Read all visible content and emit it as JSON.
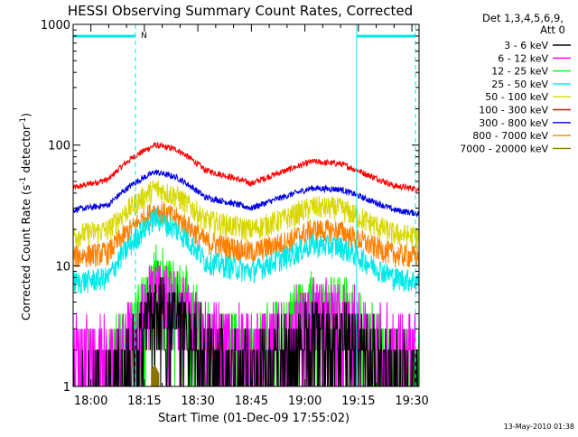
{
  "chart_data": {
    "type": "line",
    "title": "HESSI Observing Summary Count Rates, Corrected",
    "ylabel": "Corrected Count Rate (s",
    "ylabel_sup": "-1",
    "ylabel_mid": " detector",
    "ylabel_sup2": "-1",
    "ylabel_end": ")",
    "xlabel": "Start Time (01-Dec-09 17:55:02)",
    "y_scale": "log",
    "ylim": [
      1,
      1000
    ],
    "xlim": [
      "17:55:02",
      "19:32:00"
    ],
    "x_ticks": [
      "18:00",
      "18:15",
      "18:30",
      "18:45",
      "19:00",
      "19:15",
      "19:30"
    ],
    "y_ticks": [
      "1",
      "10",
      "100",
      "1000"
    ],
    "legend_title_lines": [
      "Det 1,3,4,5,6,9,",
      "Att 0"
    ],
    "legend_placement": "right",
    "footer_date": "13-May-2010 01:38",
    "flag_label": "N",
    "series": [
      {
        "name": "3 - 6 keV",
        "color": "#000000",
        "kind": "noisy",
        "x": [
          "17:55",
          "18:05",
          "18:12",
          "18:18",
          "18:24",
          "18:32",
          "18:45",
          "18:55",
          "19:02",
          "19:10",
          "19:18",
          "19:25",
          "19:32"
        ],
        "values": [
          1.2,
          1.3,
          3,
          6,
          5,
          2.5,
          1.6,
          2.2,
          3.5,
          3.4,
          2.4,
          1.6,
          1.5
        ]
      },
      {
        "name": "6 - 12 keV",
        "color": "#ff00ff",
        "kind": "noisy",
        "x": [
          "17:55",
          "18:05",
          "18:12",
          "18:18",
          "18:24",
          "18:32",
          "18:45",
          "18:55",
          "19:02",
          "19:10",
          "19:18",
          "19:25",
          "19:32"
        ],
        "values": [
          2.6,
          2.6,
          3.5,
          8,
          6.5,
          3.5,
          2.8,
          3.5,
          5.5,
          5.2,
          3.2,
          2.7,
          2.6
        ]
      },
      {
        "name": "12 - 25 keV",
        "color": "#00ff00",
        "kind": "noisy",
        "x": [
          "17:55",
          "18:05",
          "18:12",
          "18:18",
          "18:24",
          "18:32",
          "18:45",
          "18:55",
          "19:02",
          "19:10",
          "19:18",
          "19:25",
          "19:32"
        ],
        "values": [
          1.5,
          1.6,
          4,
          10,
          7.5,
          3.2,
          2.4,
          4,
          6,
          5.8,
          3.5,
          2,
          1.8
        ]
      },
      {
        "name": "25 - 50 keV",
        "color": "#00e8e8",
        "kind": "band",
        "x": [
          "17:55",
          "18:05",
          "18:12",
          "18:18",
          "18:24",
          "18:32",
          "18:45",
          "18:55",
          "19:02",
          "19:10",
          "19:18",
          "19:25",
          "19:32"
        ],
        "values": [
          7.3,
          8,
          16,
          25,
          20,
          11,
          9,
          12,
          15,
          14.5,
          10.5,
          8,
          7.5
        ]
      },
      {
        "name": "50 - 100 keV",
        "color": "#d8d800",
        "kind": "band",
        "x": [
          "17:55",
          "18:05",
          "18:12",
          "18:18",
          "18:24",
          "18:32",
          "18:45",
          "18:55",
          "19:02",
          "19:10",
          "19:18",
          "19:25",
          "19:32"
        ],
        "values": [
          18,
          20,
          32,
          44,
          38,
          24,
          20,
          25,
          31,
          30,
          23,
          18.5,
          17.5
        ]
      },
      {
        "name": "100 - 300 keV",
        "color": "#ff0000",
        "kind": "line",
        "x": [
          "17:55",
          "18:05",
          "18:12",
          "18:18",
          "18:24",
          "18:32",
          "18:45",
          "18:55",
          "19:02",
          "19:10",
          "19:18",
          "19:25",
          "19:32"
        ],
        "values": [
          44,
          52,
          80,
          100,
          92,
          62,
          48,
          62,
          73,
          70,
          56,
          46,
          43
        ]
      },
      {
        "name": "300 - 800 keV",
        "color": "#0000e0",
        "kind": "line",
        "x": [
          "17:55",
          "18:05",
          "18:12",
          "18:18",
          "18:24",
          "18:32",
          "18:45",
          "18:55",
          "19:02",
          "19:10",
          "19:18",
          "19:25",
          "19:32"
        ],
        "values": [
          29,
          32,
          48,
          60,
          54,
          37,
          30,
          38,
          44,
          43,
          35,
          29,
          27
        ]
      },
      {
        "name": "800 - 7000 keV",
        "color": "#ff7f00",
        "kind": "band",
        "x": [
          "17:55",
          "18:05",
          "18:12",
          "18:18",
          "18:24",
          "18:32",
          "18:45",
          "18:55",
          "19:02",
          "19:10",
          "19:18",
          "19:25",
          "19:32"
        ],
        "values": [
          12,
          13,
          21,
          29,
          25,
          16,
          13,
          16,
          20,
          19.5,
          15,
          12.5,
          12
        ]
      },
      {
        "name": "7000 - 20000 keV",
        "color": "#8b7300",
        "kind": "spike",
        "x": [
          "18:17",
          "18:18",
          "18:19"
        ],
        "values": [
          1.4,
          1.5,
          1.3
        ]
      }
    ],
    "annotations": {
      "color": "#00e8e8",
      "solid_lines": [
        "19:14:30"
      ],
      "dashed_lines": [
        "18:12:30",
        "19:31:00"
      ],
      "bars": [
        {
          "from": "17:55:02",
          "to": "18:12:30",
          "level": 800
        },
        {
          "from": "19:14:30",
          "to": "19:31:00",
          "level": 800
        }
      ]
    }
  }
}
